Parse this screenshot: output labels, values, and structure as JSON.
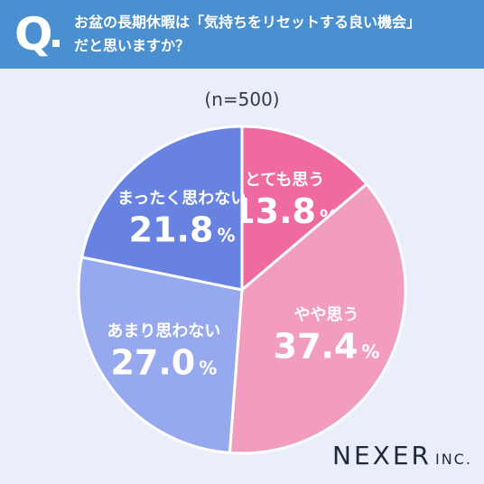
{
  "header": {
    "q_letter": "Q",
    "question_line1": "お盆の長期休暇は「気持ちをリセットする良い機会」",
    "question_line2": "だと思いますか？"
  },
  "sample_note": "(n=500)",
  "chart_data": {
    "type": "pie",
    "unit": "%",
    "slices": [
      {
        "label": "とても思う",
        "value": 13.8,
        "display": "13.8",
        "color": "#ef6a9e"
      },
      {
        "label": "やや思う",
        "value": 37.4,
        "display": "37.4",
        "color": "#f29cc0"
      },
      {
        "label": "あまり思わない",
        "value": 27.0,
        "display": "27.0",
        "color": "#96a9ee"
      },
      {
        "label": "まったく思わない",
        "value": 21.8,
        "display": "21.8",
        "color": "#6882e2"
      }
    ]
  },
  "logo": {
    "name": "NEXER",
    "suffix": "INC."
  }
}
